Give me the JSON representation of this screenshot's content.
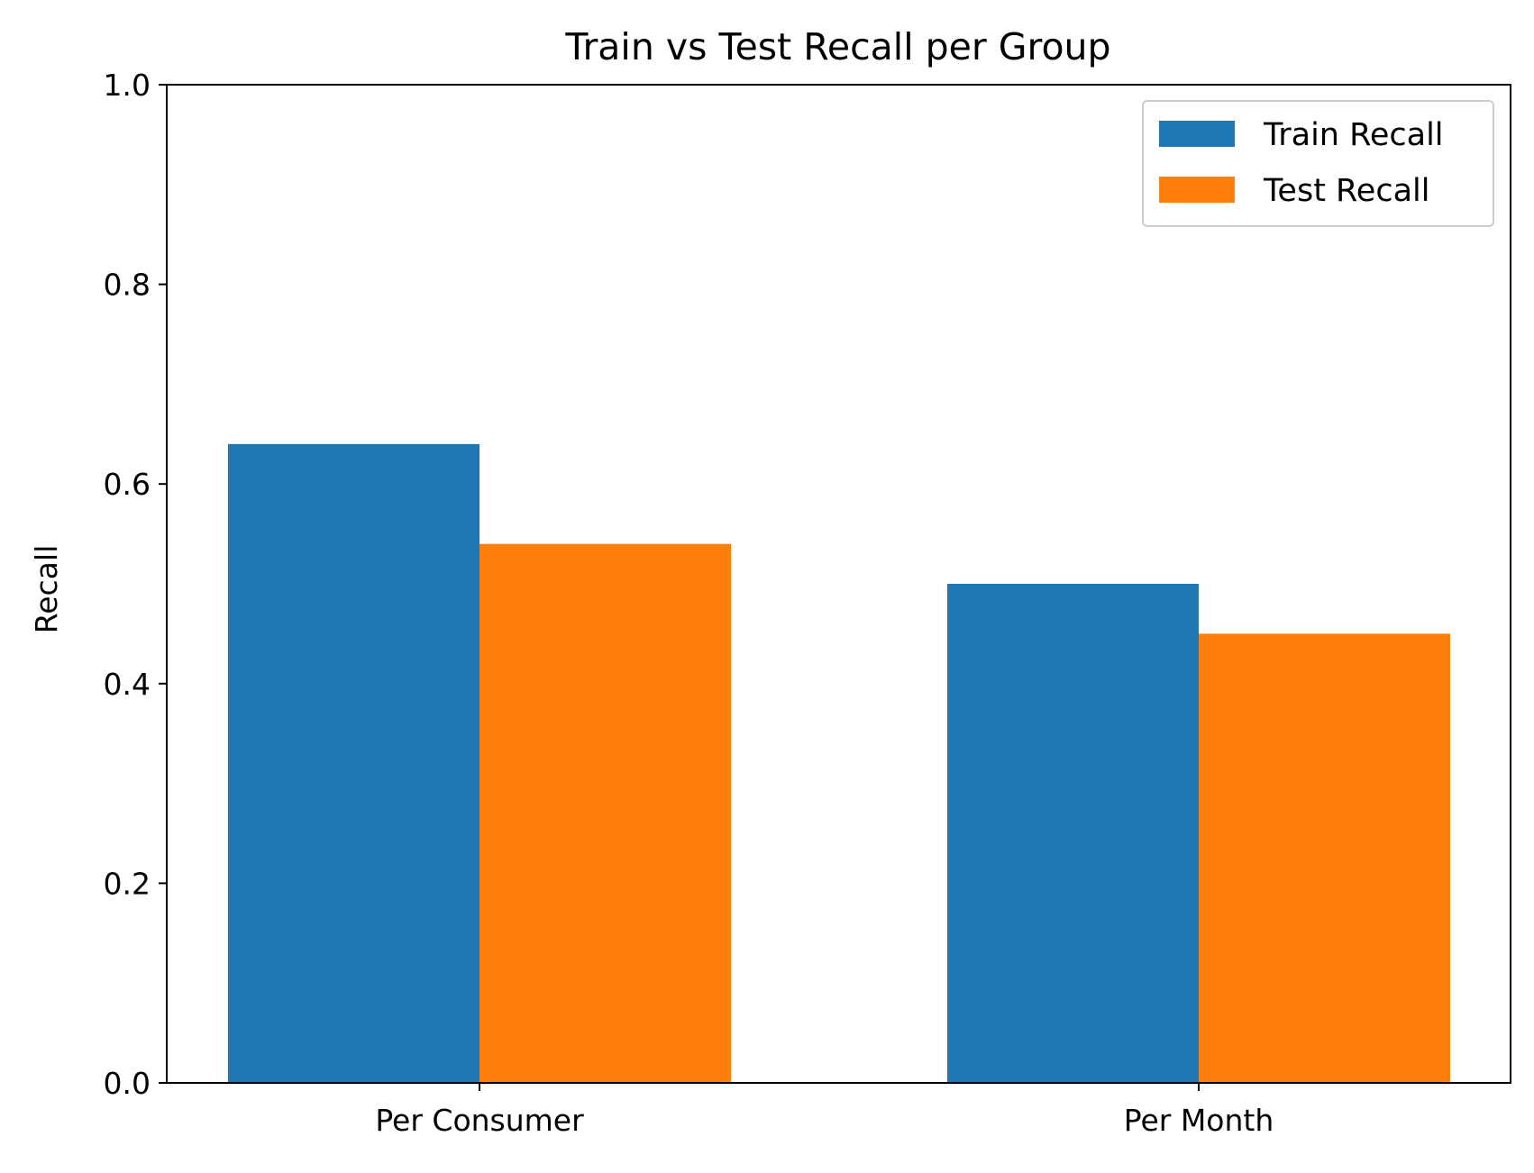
{
  "chart_data": {
    "type": "bar",
    "title": "Train vs Test Recall per Group",
    "xlabel": "",
    "ylabel": "Recall",
    "categories": [
      "Per Consumer",
      "Per Month"
    ],
    "series": [
      {
        "name": "Train Recall",
        "values": [
          0.64,
          0.5
        ],
        "color": "#1f77b4"
      },
      {
        "name": "Test Recall",
        "values": [
          0.54,
          0.45
        ],
        "color": "#ff7f0e"
      }
    ],
    "ylim": [
      0,
      1.0
    ],
    "yticks": [
      "0.0",
      "0.2",
      "0.4",
      "0.6",
      "0.8",
      "1.0"
    ],
    "grid": false,
    "legend_position": "top-right"
  }
}
